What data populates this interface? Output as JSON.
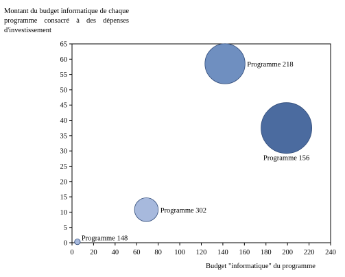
{
  "chart_data": {
    "type": "bubble",
    "ylabel": "Montant du budget informatique de chaque programme consacré à des dépenses d'investissement",
    "xlabel": "Budget \"informatique\" du programme",
    "xlim": [
      0,
      240
    ],
    "ylim": [
      0,
      65
    ],
    "x_ticks": [
      "0",
      "20",
      "40",
      "60",
      "80",
      "100",
      "120",
      "140",
      "160",
      "180",
      "200",
      "220",
      "240"
    ],
    "y_ticks": [
      "0",
      "5",
      "10",
      "15",
      "20",
      "25",
      "30",
      "35",
      "40",
      "45",
      "50",
      "55",
      "60",
      "65"
    ],
    "grid": false,
    "points": [
      {
        "label": "Programme 218",
        "x": 142,
        "y": 58.5,
        "size": 1,
        "color": "#6f8fc0",
        "label_position": "right"
      },
      {
        "label": "Programme 156",
        "x": 199,
        "y": 37.5,
        "size": 1.6,
        "color": "#4b6b9f",
        "label_position": "below"
      },
      {
        "label": "Programme 302",
        "x": 69,
        "y": 10.8,
        "size": 0.35,
        "color": "#a7b9dd",
        "label_position": "right"
      },
      {
        "label": "Programme 148",
        "x": 5,
        "y": 0.3,
        "size": 0.02,
        "color": "#a7b9dd",
        "label_position": "above-right"
      }
    ]
  }
}
